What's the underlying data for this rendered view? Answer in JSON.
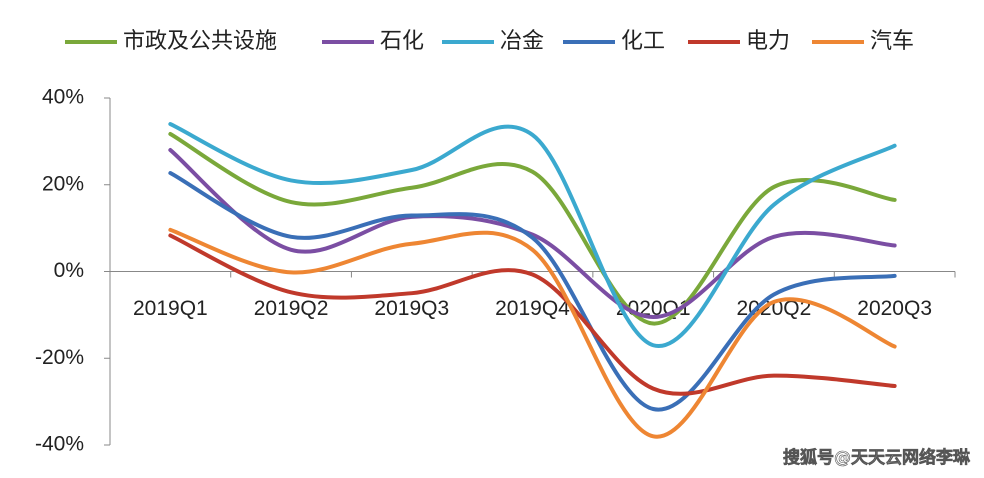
{
  "chart_data": {
    "type": "line",
    "categories": [
      "2019Q1",
      "2019Q2",
      "2019Q3",
      "2019Q4",
      "2020Q1",
      "2020Q2",
      "2020Q3"
    ],
    "series": [
      {
        "name": "市政及公共设施",
        "color": "#7aa83a",
        "values": [
          31.7,
          16,
          19.3,
          23,
          -12,
          19.5,
          16.5
        ]
      },
      {
        "name": "石化",
        "color": "#7b4ea3",
        "values": [
          28,
          5,
          12.6,
          8.5,
          -10.5,
          8,
          6
        ]
      },
      {
        "name": "冶金",
        "color": "#3ba9cf",
        "values": [
          34,
          21,
          23.4,
          31.5,
          -17,
          15.4,
          29
        ]
      },
      {
        "name": "化工",
        "color": "#3a6fb7",
        "values": [
          22.7,
          8,
          12.9,
          7.8,
          -31.7,
          -5.3,
          -1
        ]
      },
      {
        "name": "电力",
        "color": "#c0392b",
        "values": [
          8.3,
          -4.8,
          -5,
          -0.7,
          -27,
          -24,
          -26.4
        ]
      },
      {
        "name": "汽车",
        "color": "#ee8633",
        "values": [
          9.6,
          -0.2,
          6.4,
          5,
          -38,
          -7,
          -17.3
        ]
      }
    ],
    "ylim": [
      -40,
      40
    ],
    "yticks": [
      {
        "value": -40,
        "label": "-40%"
      },
      {
        "value": -20,
        "label": "-20%"
      },
      {
        "value": 0,
        "label": "0%"
      },
      {
        "value": 20,
        "label": "20%"
      },
      {
        "value": 40,
        "label": "40%"
      }
    ],
    "legend": "top",
    "smooth": true,
    "watermark": "搜狐号@天天云网络李琳"
  }
}
